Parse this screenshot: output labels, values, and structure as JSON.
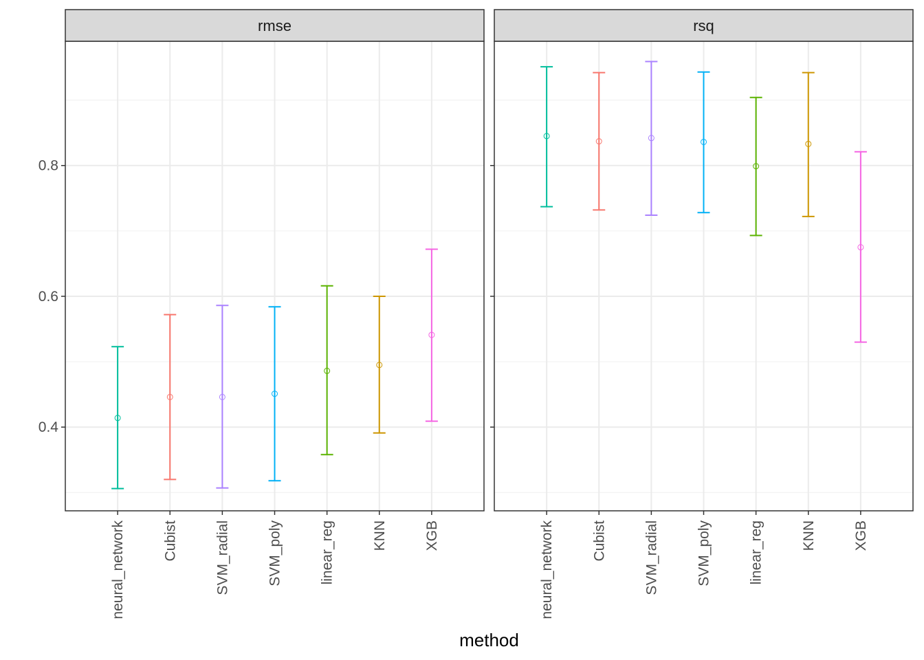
{
  "chart_data": {
    "type": "errorbar",
    "xlabel": "method",
    "ylabel": "",
    "categories": [
      "neural_network",
      "Cubist",
      "SVM_radial",
      "SVM_poly",
      "linear_reg",
      "KNN",
      "XGB"
    ],
    "colors": [
      "#00BE9C",
      "#F8766D",
      "#AB82FF",
      "#00B0F6",
      "#5BB300",
      "#CD9600",
      "#F564E3"
    ],
    "ylim": [
      0.272,
      0.99
    ],
    "yticks": [
      0.4,
      0.6,
      0.8
    ],
    "ytick_labels": [
      "0.4",
      "0.6",
      "0.8"
    ],
    "grid": true,
    "facets": [
      {
        "label": "rmse",
        "mean": [
          0.414,
          0.446,
          0.446,
          0.451,
          0.486,
          0.495,
          0.541
        ],
        "lower": [
          0.306,
          0.32,
          0.307,
          0.318,
          0.358,
          0.391,
          0.409
        ],
        "upper": [
          0.523,
          0.572,
          0.586,
          0.584,
          0.616,
          0.6,
          0.672
        ]
      },
      {
        "label": "rsq",
        "mean": [
          0.845,
          0.837,
          0.842,
          0.836,
          0.799,
          0.833,
          0.675
        ],
        "lower": [
          0.737,
          0.732,
          0.724,
          0.728,
          0.693,
          0.722,
          0.53
        ],
        "upper": [
          0.951,
          0.942,
          0.959,
          0.943,
          0.904,
          0.942,
          0.821
        ]
      }
    ]
  }
}
